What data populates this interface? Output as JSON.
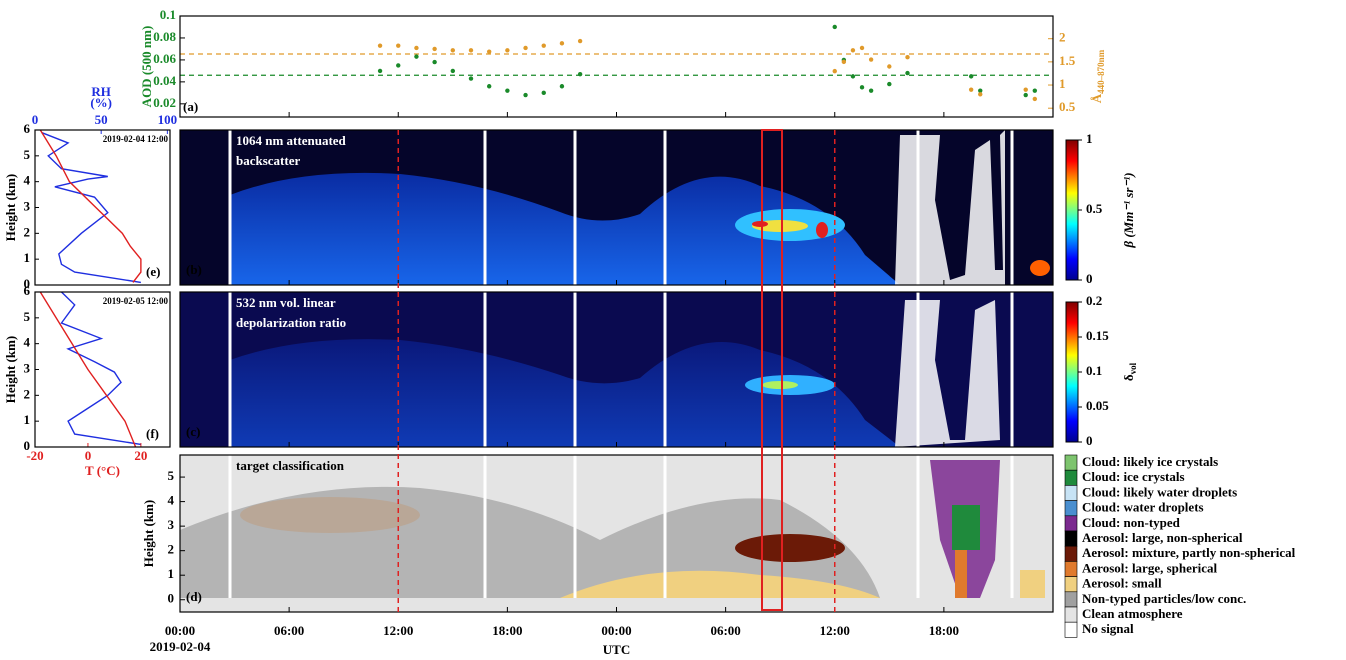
{
  "chart_data": [
    {
      "type": "scatter",
      "panel": "(a)",
      "ylabel": "AOD (500 nm)",
      "y2label": "Å",
      "y2label_sub": "440–870nm",
      "xlim": [
        0,
        48
      ],
      "ylim": [
        0.008,
        0.1
      ],
      "yticks": [
        0.02,
        0.04,
        0.06,
        0.08,
        0.1
      ],
      "y2lim": [
        0.31,
        2.49
      ],
      "y2ticks": [
        0.5,
        1,
        1.5,
        2
      ],
      "x": [
        11,
        12,
        13,
        14,
        15,
        16,
        17,
        18,
        19,
        20,
        21,
        22,
        36,
        36.5,
        37,
        37.5,
        38,
        39,
        40,
        43.5,
        44,
        46.5,
        47
      ],
      "series": [
        {
          "color": "#1a8a2a",
          "values": [
            0.05,
            0.055,
            0.063,
            0.058,
            0.05,
            0.043,
            0.036,
            0.032,
            0.028,
            0.03,
            0.036,
            0.047,
            0.09,
            0.06,
            0.045,
            0.035,
            0.032,
            0.038,
            0.048,
            0.045,
            0.032,
            0.028,
            0.032
          ]
        },
        {
          "color": "#e09a2a",
          "axis": "y2",
          "values": [
            1.85,
            1.85,
            1.8,
            1.78,
            1.75,
            1.75,
            1.72,
            1.75,
            1.8,
            1.85,
            1.9,
            1.95,
            1.3,
            1.5,
            1.75,
            1.8,
            1.55,
            1.4,
            1.6,
            0.9,
            0.8,
            0.9,
            0.7
          ]
        }
      ],
      "hlines": [
        {
          "value": 0.046,
          "color": "#1a8a2a"
        },
        {
          "value": 1.67,
          "axis": "y2",
          "color": "#e09a2a"
        }
      ]
    },
    {
      "type": "image",
      "panel": "(b)",
      "title_lines": [
        "1064 nm attenuated",
        "backscatter"
      ],
      "xlim": [
        0,
        48
      ],
      "colorbar": {
        "label": "β (Mm⁻¹ sr⁻¹)",
        "lim": [
          0,
          1
        ],
        "ticks": [
          0,
          0.5,
          1
        ]
      }
    },
    {
      "type": "image",
      "panel": "(c)",
      "title_lines": [
        "532 nm vol. linear",
        "depolarization ratio"
      ],
      "xlim": [
        0,
        48
      ],
      "colorbar": {
        "label": "δ",
        "label_sub": "vol",
        "lim": [
          0,
          0.2
        ],
        "ticks": [
          0,
          0.05,
          0.1,
          0.15,
          0.2
        ]
      }
    },
    {
      "type": "classification",
      "panel": "(d)",
      "title": "target classification",
      "ylabel": "Height (km)",
      "ylim": [
        -0.5,
        5.9
      ],
      "yticks": [
        0,
        1,
        2,
        3,
        4,
        5
      ],
      "xlim": [
        0,
        48
      ],
      "xlabel": "UTC",
      "date": "2019-02-04",
      "xticks": [
        {
          "value": 0,
          "label": "00:00"
        },
        {
          "value": 6,
          "label": "06:00"
        },
        {
          "value": 12,
          "label": "12:00"
        },
        {
          "value": 18,
          "label": "18:00"
        },
        {
          "value": 24,
          "label": "00:00"
        },
        {
          "value": 30,
          "label": "06:00"
        },
        {
          "value": 36,
          "label": "12:00"
        },
        {
          "value": 42,
          "label": "18:00"
        }
      ],
      "legend": [
        {
          "name": "Cloud: likely ice crystals",
          "color": "#7dc46e"
        },
        {
          "name": "Cloud: ice crystals",
          "color": "#1f8a3c"
        },
        {
          "name": "Cloud: likely water droplets",
          "color": "#c7e3f5"
        },
        {
          "name": "Cloud: water droplets",
          "color": "#4a8fd0"
        },
        {
          "name": "Cloud: non-typed",
          "color": "#7b2a8f"
        },
        {
          "name": "Aerosol: large, non-spherical",
          "color": "#000000"
        },
        {
          "name": "Aerosol: mixture, partly non-spherical",
          "color": "#6b1a07"
        },
        {
          "name": "Aerosol: large, spherical",
          "color": "#e07a2d"
        },
        {
          "name": "Aerosol: small",
          "color": "#f0d080"
        },
        {
          "name": "Non-typed particles/low conc.",
          "color": "#a0a0a0"
        },
        {
          "name": "Clean atmosphere",
          "color": "#e4e4e4"
        },
        {
          "name": "No signal",
          "color": "#ffffff"
        }
      ]
    },
    {
      "type": "profile",
      "panel": "(e)",
      "date": "2019-02-04 12:00",
      "ylabel": "Height (km)",
      "ylim": [
        0,
        6
      ],
      "yticks": [
        0,
        1,
        2,
        3,
        4,
        5,
        6
      ],
      "rh": {
        "label_lines": [
          "RH",
          "(%)"
        ],
        "xlim": [
          0,
          102
        ],
        "xticks": [
          0,
          50,
          100
        ],
        "color": "#1f2fe0",
        "height": [
          0.1,
          0.5,
          0.8,
          1.2,
          2,
          2.8,
          3.4,
          3.8,
          4.1,
          4.2,
          4.5,
          5,
          5.5,
          5.9
        ],
        "values": [
          80,
          30,
          20,
          18,
          35,
          55,
          45,
          15,
          40,
          55,
          20,
          10,
          25,
          5
        ]
      },
      "t": {
        "xlim": [
          -20,
          31
        ],
        "color": "#e02020",
        "height": [
          0.1,
          0.5,
          1,
          1.5,
          2,
          3,
          4,
          5,
          6
        ],
        "values": [
          17,
          20,
          20,
          16,
          13,
          3,
          -7,
          -12,
          -18
        ]
      }
    },
    {
      "type": "profile",
      "panel": "(f)",
      "date": "2019-02-05 12:00",
      "ylabel": "Height (km)",
      "ylim": [
        0,
        6
      ],
      "yticks": [
        0,
        1,
        2,
        3,
        4,
        5,
        6
      ],
      "rh": {
        "xlim": [
          0,
          102
        ],
        "color": "#1f2fe0",
        "height": [
          0.1,
          0.5,
          1,
          1.5,
          2,
          2.5,
          2.9,
          3.3,
          3.8,
          4.2,
          4.8,
          5.5,
          6
        ],
        "values": [
          80,
          30,
          25,
          40,
          55,
          65,
          60,
          45,
          25,
          50,
          20,
          30,
          20
        ]
      },
      "t": {
        "label": "T (°C)",
        "xlim": [
          -20,
          31
        ],
        "xticks": [
          -20,
          0,
          20
        ],
        "color": "#e02020",
        "height": [
          0,
          1,
          2,
          3,
          4,
          5,
          6
        ],
        "values": [
          18,
          14,
          7,
          0,
          -6,
          -12,
          -18
        ]
      }
    }
  ],
  "overlay": {
    "dashed_x": [
      12,
      36
    ],
    "box_x": [
      32,
      33.1
    ],
    "color": "#e02020"
  }
}
